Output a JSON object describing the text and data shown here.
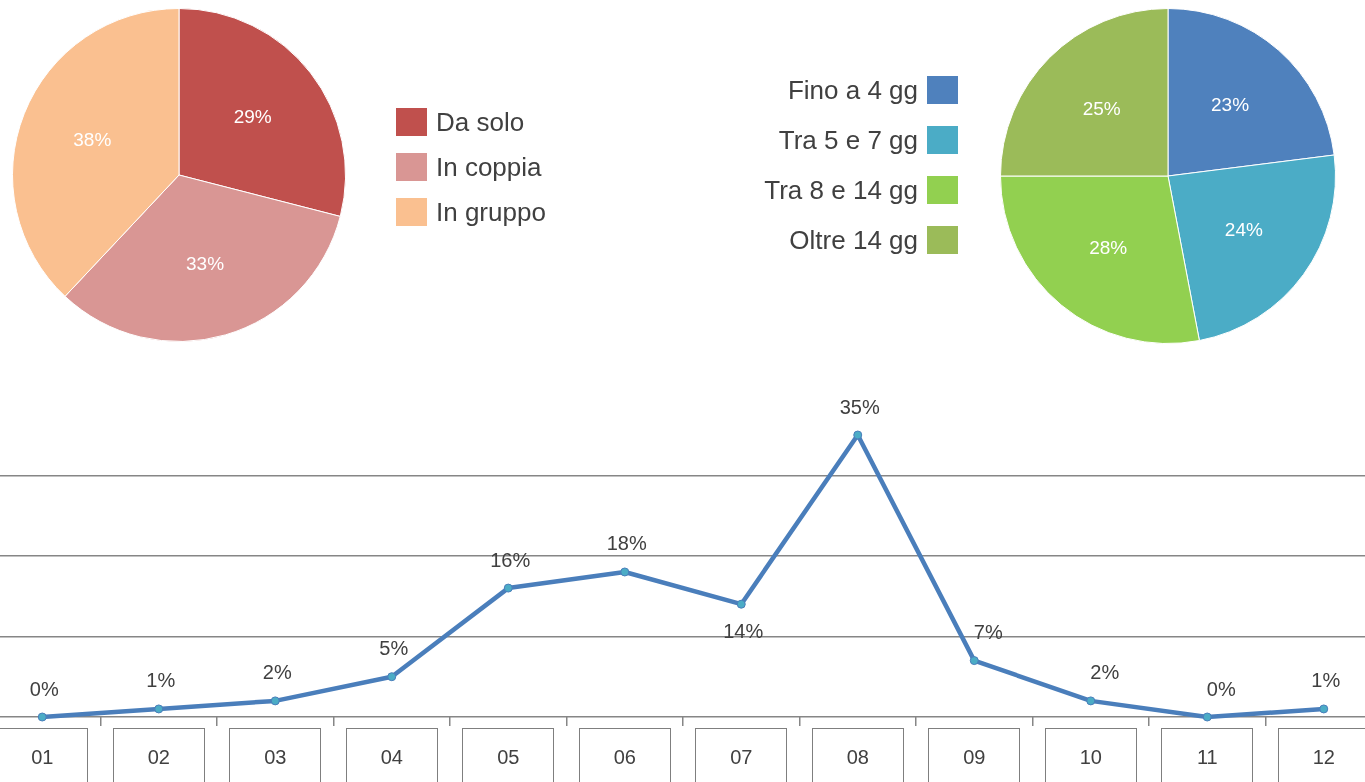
{
  "chart_data": [
    {
      "type": "pie",
      "categories": [
        "Da solo",
        "In coppia",
        "In gruppo"
      ],
      "values": [
        29,
        33,
        38
      ],
      "colors": [
        "#c0504d",
        "#d99694",
        "#fac090"
      ],
      "value_labels": [
        "29%",
        "33%",
        "38%"
      ],
      "legend": "right"
    },
    {
      "type": "pie",
      "categories": [
        "Fino a 4 gg",
        "Tra 5 e 7 gg",
        "Tra 8 e 14 gg",
        "Oltre 14 gg"
      ],
      "values": [
        23,
        24,
        28,
        25
      ],
      "colors": [
        "#4f81bd",
        "#4bacc6",
        "#92d050",
        "#9bbb59"
      ],
      "value_labels": [
        "23%",
        "24%",
        "28%",
        "25%"
      ],
      "legend": "left"
    },
    {
      "type": "line",
      "categories": [
        "01",
        "02",
        "03",
        "04",
        "05",
        "06",
        "07",
        "08",
        "09",
        "10",
        "11",
        "12"
      ],
      "values": [
        0,
        1,
        2,
        5,
        16,
        18,
        14,
        35,
        7,
        2,
        0,
        1
      ],
      "value_labels": [
        "0%",
        "1%",
        "2%",
        "5%",
        "16%",
        "18%",
        "14%",
        "35%",
        "7%",
        "2%",
        "0%",
        "1%"
      ],
      "color": "#4a7ebb",
      "yticks": [
        {
          "value": 0,
          "label": null
        },
        {
          "value": 10,
          "label": null
        },
        {
          "value": 20,
          "label": null
        },
        {
          "value": 30,
          "label": null
        }
      ],
      "grid": "y",
      "tick_labels": "x",
      "marker": "circle",
      "line_style": "solid"
    }
  ]
}
